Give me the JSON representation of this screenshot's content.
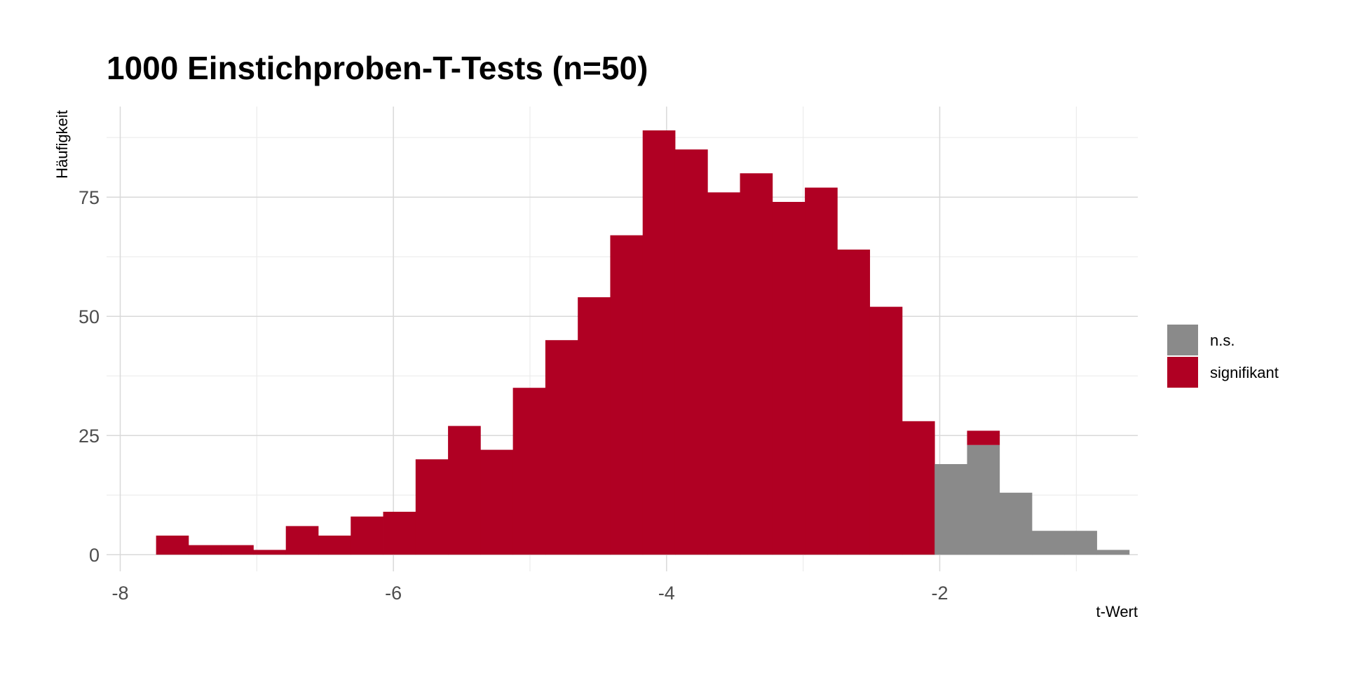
{
  "chart_data": {
    "type": "bar",
    "title": "1000 Einstichproben-T-Tests (n=50)",
    "xlabel": "t-Wert",
    "ylabel": "Häufigkeit",
    "xlim": [
      -8.1,
      -0.55
    ],
    "ylim": [
      -3.5,
      94
    ],
    "x_ticks": [
      -8,
      -6,
      -4,
      -2
    ],
    "x_tick_labels": [
      "-8",
      "-6",
      "-4",
      "-2"
    ],
    "y_ticks": [
      0,
      25,
      50,
      75
    ],
    "y_tick_labels": [
      "0",
      "25",
      "50",
      "75"
    ],
    "stacked": true,
    "grid": true,
    "legend_position": "right",
    "bin_width": 0.2375,
    "bins_start": [
      -7.7375,
      -7.5,
      -7.2625,
      -7.025,
      -6.7875,
      -6.55,
      -6.3125,
      -6.075,
      -5.8375,
      -5.6,
      -5.3625,
      -5.125,
      -4.8875,
      -4.65,
      -4.4125,
      -4.175,
      -3.9375,
      -3.7,
      -3.4625,
      -3.225,
      -2.9875,
      -2.75,
      -2.5125,
      -2.275,
      -2.0375,
      -1.8,
      -1.5625,
      -1.325,
      -1.0875,
      -0.85
    ],
    "series": [
      {
        "name": "n.s.",
        "color": "#8a8a8a",
        "values": [
          0,
          0,
          0,
          0,
          0,
          0,
          0,
          0,
          0,
          0,
          0,
          0,
          0,
          0,
          0,
          0,
          0,
          0,
          0,
          0,
          0,
          0,
          0,
          0,
          19,
          23,
          13,
          5,
          5,
          1
        ]
      },
      {
        "name": "signifikant",
        "color": "#b00023",
        "values": [
          4,
          2,
          2,
          1,
          6,
          4,
          8,
          9,
          20,
          27,
          22,
          35,
          45,
          54,
          67,
          89,
          85,
          76,
          80,
          74,
          77,
          64,
          52,
          28,
          0,
          3,
          0,
          0,
          0,
          0
        ]
      }
    ]
  }
}
